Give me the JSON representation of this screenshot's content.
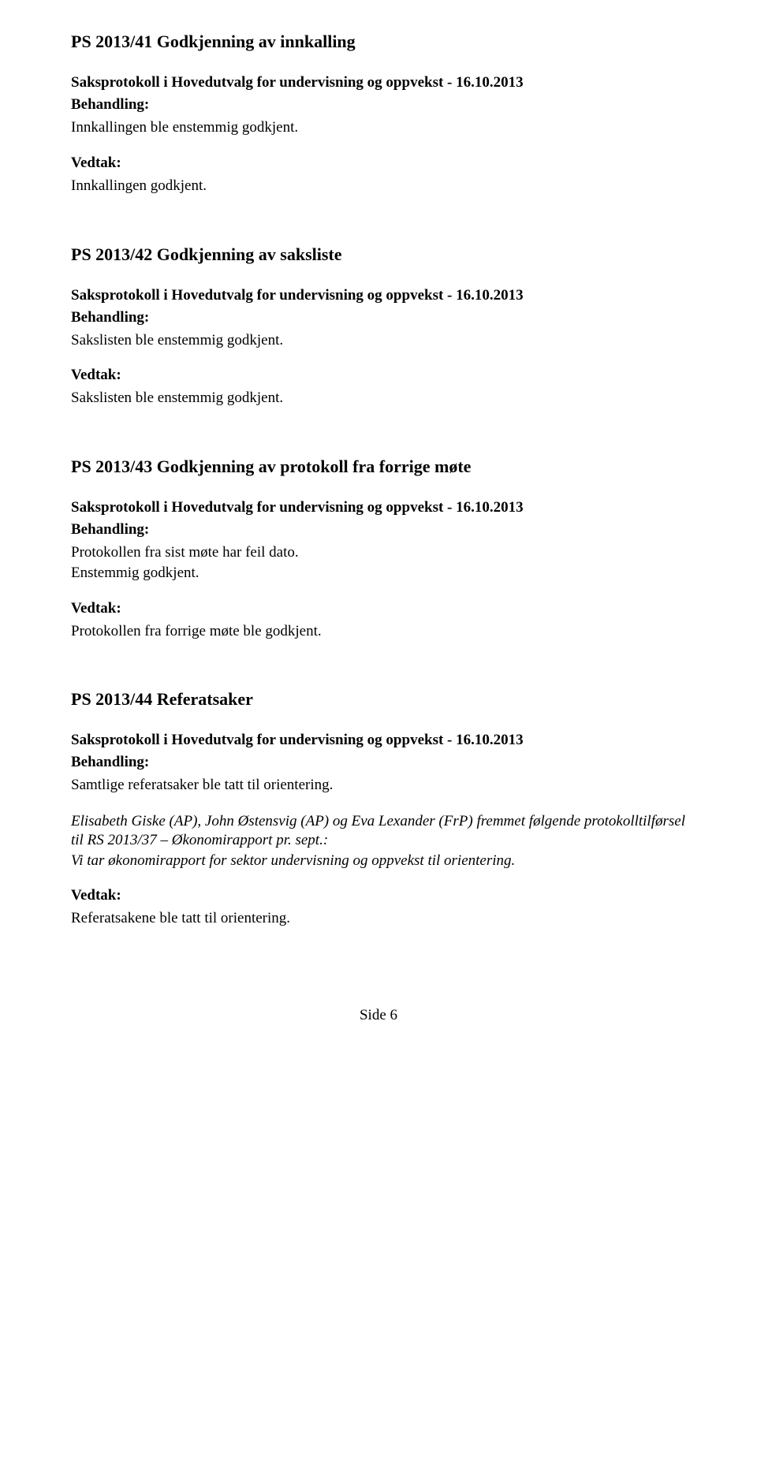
{
  "colors": {
    "text": "#000000",
    "background": "#ffffff"
  },
  "typography": {
    "heading_size_pt": 14,
    "body_size_pt": 12,
    "font_family": "Times New Roman"
  },
  "sections": [
    {
      "title": "PS 2013/41 Godkjenning av innkalling",
      "subheading": "Saksprotokoll i Hovedutvalg for undervisning og oppvekst - 16.10.2013",
      "behandling_label": "Behandling:",
      "behandling_body": "Innkallingen  ble enstemmig godkjent.",
      "vedtak_label": "Vedtak:",
      "vedtak_body": "Innkallingen godkjent."
    },
    {
      "title": "PS 2013/42 Godkjenning av saksliste",
      "subheading": "Saksprotokoll i Hovedutvalg for undervisning og oppvekst - 16.10.2013",
      "behandling_label": "Behandling:",
      "behandling_body": "Sakslisten ble enstemmig godkjent.",
      "vedtak_label": "Vedtak:",
      "vedtak_body": "Sakslisten ble enstemmig godkjent."
    },
    {
      "title": "PS 2013/43 Godkjenning av protokoll fra forrige møte",
      "subheading": "Saksprotokoll i Hovedutvalg for undervisning og oppvekst - 16.10.2013",
      "behandling_label": "Behandling:",
      "behandling_line1": "Protokollen fra sist møte har feil dato.",
      "behandling_line2": "Enstemmig godkjent.",
      "vedtak_label": "Vedtak:",
      "vedtak_body": "Protokollen fra forrige møte ble godkjent."
    },
    {
      "title": "PS 2013/44 Referatsaker",
      "subheading": "Saksprotokoll i Hovedutvalg for undervisning og oppvekst - 16.10.2013",
      "behandling_label": "Behandling:",
      "behandling_body1": "Samtlige referatsaker ble tatt til orientering.",
      "behandling_italic1": "Elisabeth Giske (AP), John Østensvig (AP) og Eva Lexander (FrP) fremmet følgende protokolltilførsel til RS 2013/37 – Økonomirapport pr. sept.:",
      "behandling_italic2": "Vi tar økonomirapport for sektor undervisning og oppvekst til orientering.",
      "vedtak_label": "Vedtak:",
      "vedtak_body": "Referatsakene ble tatt til orientering."
    }
  ],
  "footer": "Side 6"
}
